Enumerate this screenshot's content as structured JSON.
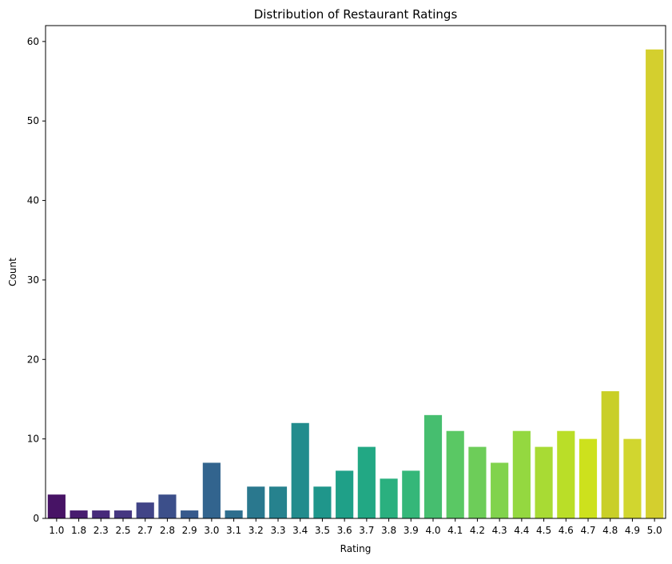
{
  "chart_data": {
    "type": "bar",
    "title": "Distribution of Restaurant Ratings",
    "xlabel": "Rating",
    "ylabel": "Count",
    "ylim": [
      0,
      62
    ],
    "yticks": [
      0,
      10,
      20,
      30,
      40,
      50,
      60
    ],
    "grid": false,
    "legend": "none",
    "palette": "viridis",
    "categories": [
      "1.0",
      "1.8",
      "2.3",
      "2.5",
      "2.7",
      "2.8",
      "2.9",
      "3.0",
      "3.1",
      "3.2",
      "3.3",
      "3.4",
      "3.5",
      "3.6",
      "3.7",
      "3.8",
      "3.9",
      "4.0",
      "4.1",
      "4.2",
      "4.3",
      "4.4",
      "4.5",
      "4.6",
      "4.7",
      "4.8",
      "4.9",
      "5.0"
    ],
    "values": [
      3,
      1,
      1,
      1,
      2,
      3,
      1,
      7,
      1,
      4,
      4,
      12,
      4,
      6,
      9,
      5,
      6,
      13,
      11,
      9,
      7,
      11,
      9,
      11,
      10,
      16,
      10,
      59
    ],
    "colors": [
      "#471365",
      "#481D6F",
      "#472A7A",
      "#453781",
      "#414487",
      "#3C4F8A",
      "#375A8C",
      "#32648E",
      "#2E6E8E",
      "#2A788E",
      "#26828E",
      "#228C8D",
      "#1F968B",
      "#1FA088",
      "#22A884",
      "#2AB07F",
      "#35B779",
      "#46BE6F",
      "#5AC864",
      "#6DCD59",
      "#81D34D",
      "#94D840",
      "#A8DB34",
      "#BADE28",
      "#CDE11D",
      "#C9CF28",
      "#D1D62F",
      "#D4CF2E"
    ]
  }
}
